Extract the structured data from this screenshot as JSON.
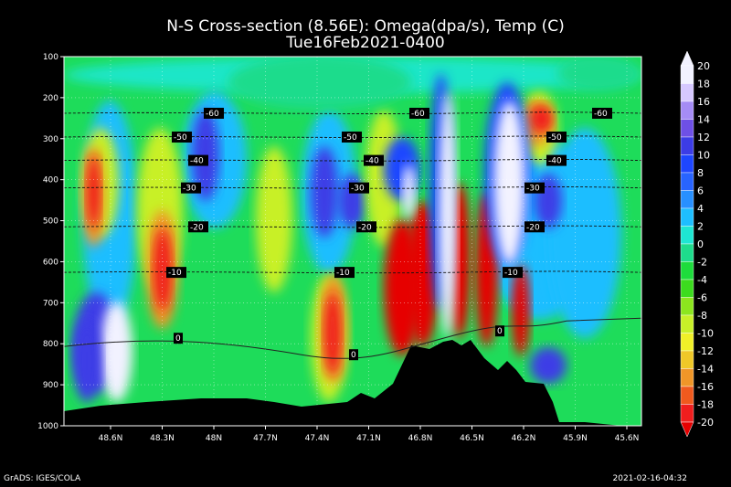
{
  "title": "N-S Cross-section (8.56E): Omega(dpa/s), Temp (C)",
  "subtitle": "Tue16Feb2021-0400",
  "footer_left": "GrADS: IGES/COLA",
  "footer_right": "2021-02-16-04:32",
  "chart_data": {
    "type": "heatmap",
    "x_ticks": [
      "48.6N",
      "48.3N",
      "48N",
      "47.7N",
      "47.4N",
      "47.1N",
      "46.8N",
      "46.5N",
      "46.2N",
      "45.9N",
      "45.6N"
    ],
    "y_ticks": [
      "100",
      "200",
      "300",
      "400",
      "500",
      "600",
      "700",
      "800",
      "900",
      "1000"
    ],
    "colorbar": {
      "levels": [
        "20",
        "18",
        "16",
        "14",
        "12",
        "10",
        "8",
        "6",
        "4",
        "2",
        "0",
        "-2",
        "-4",
        "-6",
        "-8",
        "-10",
        "-12",
        "-14",
        "-16",
        "-18",
        "-20"
      ],
      "colors": [
        "#f2f2ff",
        "#d6c8ff",
        "#a58cf5",
        "#6e50e6",
        "#3c3ce6",
        "#1e46ff",
        "#2864ff",
        "#2890ff",
        "#1ebeff",
        "#1ee6d2",
        "#1edc8c",
        "#1edc3c",
        "#3cdc1e",
        "#8ce61e",
        "#c8f028",
        "#f0f028",
        "#f0c828",
        "#f09628",
        "#f05a1e",
        "#f01e1e",
        "#e60000"
      ]
    },
    "temperature_contours": [
      {
        "label": "-60",
        "p": 238
      },
      {
        "label": "-50",
        "p": 296
      },
      {
        "label": "-40",
        "p": 353
      },
      {
        "label": "-30",
        "p": 420
      },
      {
        "label": "-20",
        "p": 515
      },
      {
        "label": "-10",
        "p": 626
      },
      {
        "label": "0",
        "p": 800
      }
    ],
    "contour_label_text": [
      "-60",
      "-60",
      "-60",
      "-50",
      "-50",
      "-50",
      "-40",
      "-40",
      "-40",
      "-30",
      "-30",
      "-30",
      "-20",
      "-20",
      "-20",
      "-10",
      "-10",
      "-10",
      "0",
      "0",
      "0"
    ]
  }
}
